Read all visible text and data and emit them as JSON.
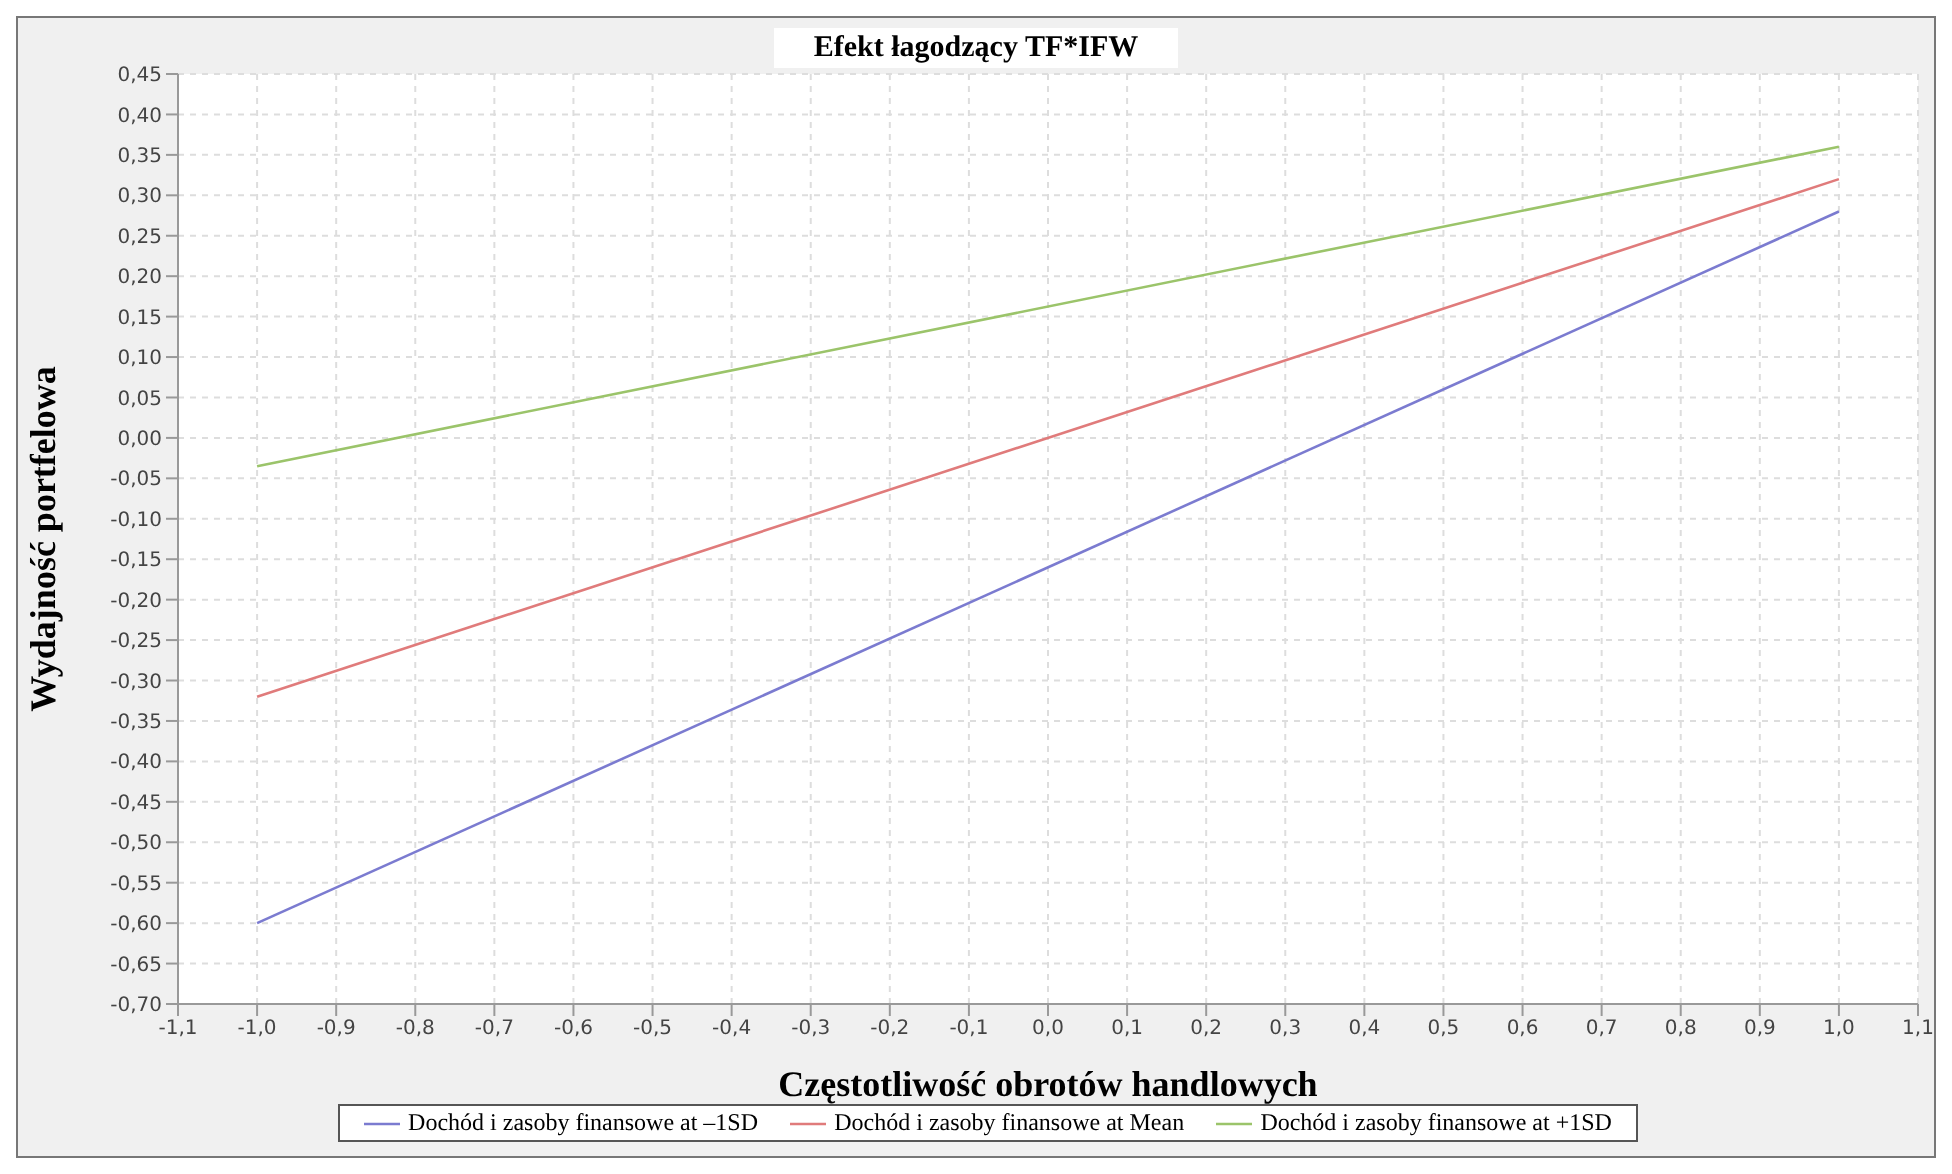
{
  "chart_data": {
    "type": "line",
    "title": "Efekt łagodzący TF*IFW",
    "xlabel": "Częstotliwość obrotów handlowych",
    "ylabel": "Wydajność portfelowa",
    "x": [
      -1.0,
      1.0
    ],
    "series": [
      {
        "name": "Dochód i zasoby finansowe at –1SD",
        "color": "#7b7bd0",
        "values": [
          -0.6,
          0.28
        ]
      },
      {
        "name": "Dochód i zasoby finansowe at Mean",
        "color": "#e07b7b",
        "values": [
          -0.32,
          0.32
        ]
      },
      {
        "name": "Dochód i zasoby finansowe at +1SD",
        "color": "#9bc46a",
        "values": [
          -0.035,
          0.36
        ]
      }
    ],
    "xlim": [
      -1.1,
      1.1
    ],
    "xticks": [
      {
        "value": -1.1,
        "label": "-1,1"
      },
      {
        "value": -1.0,
        "label": "-1,0"
      },
      {
        "value": -0.9,
        "label": "-0,9"
      },
      {
        "value": -0.8,
        "label": "-0,8"
      },
      {
        "value": -0.7,
        "label": "-0,7"
      },
      {
        "value": -0.6,
        "label": "-0,6"
      },
      {
        "value": -0.5,
        "label": "-0,5"
      },
      {
        "value": -0.4,
        "label": "-0,4"
      },
      {
        "value": -0.3,
        "label": "-0,3"
      },
      {
        "value": -0.2,
        "label": "-0,2"
      },
      {
        "value": -0.1,
        "label": "-0,1"
      },
      {
        "value": 0,
        "label": "0,0"
      },
      {
        "value": 0.1,
        "label": "0,1"
      },
      {
        "value": 0.2,
        "label": "0,2"
      },
      {
        "value": 0.3,
        "label": "0,3"
      },
      {
        "value": 0.4,
        "label": "0,4"
      },
      {
        "value": 0.5,
        "label": "0,5"
      },
      {
        "value": 0.6,
        "label": "0,6"
      },
      {
        "value": 0.7,
        "label": "0,7"
      },
      {
        "value": 0.8,
        "label": "0,8"
      },
      {
        "value": 0.9,
        "label": "0,9"
      },
      {
        "value": 1.0,
        "label": "1,0"
      },
      {
        "value": 1.1,
        "label": "1,1"
      }
    ],
    "ylim": [
      -0.7,
      0.45
    ],
    "yticks": [
      {
        "value": -0.7,
        "label": "-0,70"
      },
      {
        "value": -0.65,
        "label": "-0,65"
      },
      {
        "value": -0.6,
        "label": "-0,60"
      },
      {
        "value": -0.55,
        "label": "-0,55"
      },
      {
        "value": -0.5,
        "label": "-0,50"
      },
      {
        "value": -0.45,
        "label": "-0,45"
      },
      {
        "value": -0.4,
        "label": "-0,40"
      },
      {
        "value": -0.35,
        "label": "-0,35"
      },
      {
        "value": -0.3,
        "label": "-0,30"
      },
      {
        "value": -0.25,
        "label": "-0,25"
      },
      {
        "value": -0.2,
        "label": "-0,20"
      },
      {
        "value": -0.15,
        "label": "-0,15"
      },
      {
        "value": -0.1,
        "label": "-0,10"
      },
      {
        "value": -0.05,
        "label": "-0,05"
      },
      {
        "value": 0,
        "label": "0,00"
      },
      {
        "value": 0.05,
        "label": "0,05"
      },
      {
        "value": 0.1,
        "label": "0,10"
      },
      {
        "value": 0.15,
        "label": "0,15"
      },
      {
        "value": 0.2,
        "label": "0,20"
      },
      {
        "value": 0.25,
        "label": "0,25"
      },
      {
        "value": 0.3,
        "label": "0,30"
      },
      {
        "value": 0.35,
        "label": "0,35"
      },
      {
        "value": 0.4,
        "label": "0,40"
      },
      {
        "value": 0.45,
        "label": "0,45"
      }
    ],
    "grid": true,
    "legend": "bottom",
    "marker": "none",
    "line_style": "solid"
  }
}
